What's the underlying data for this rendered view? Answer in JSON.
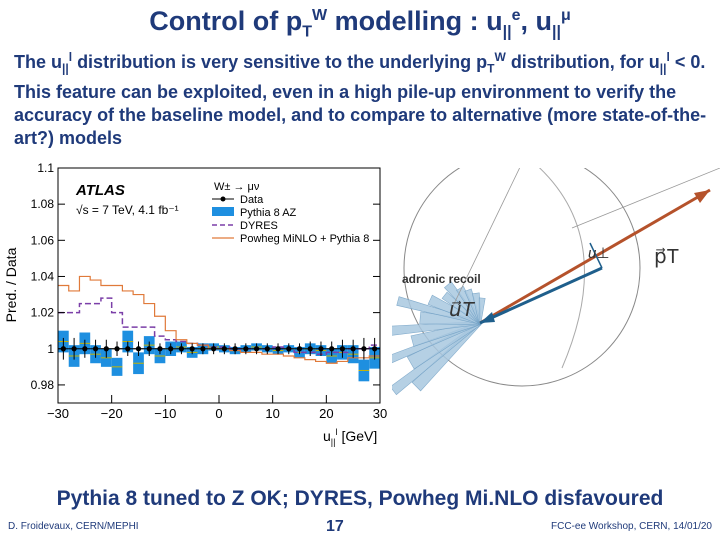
{
  "slide": {
    "title_a": "Control of p",
    "title_sub": "T",
    "title_sup": "W",
    "title_b": " modelling : u",
    "title_sub2": "||",
    "title_sup2": "e",
    "title_c": ", u",
    "title_sub3": "||",
    "title_sup3": "μ",
    "intro_1": "The u",
    "intro_sub1": "||",
    "intro_sup1": "l",
    "intro_2": " distribution is very sensitive to the underlying p",
    "intro_sub2": "T",
    "intro_sup2": "W",
    "intro_3": " distribution, for u",
    "intro_sub3": "||",
    "intro_sup3": "l",
    "intro_4": " < 0. This feature can be exploited, even in a high pile-up environment to verify the accuracy of the baseline model, and to compare to alternative (more state-of-the-art?) models",
    "conclusion": "Pythia 8 tuned to Z OK; DYRES, Powheg Mi.NLO disfavoured",
    "footer_left": "D. Froidevaux, CERN/MEPHI",
    "page_number": "17",
    "footer_right": "FCC-ee Workshop, CERN, 14/01/20"
  },
  "chart_data": {
    "type": "line",
    "ylabel": "Pred. / Data",
    "xlabel_main": "u",
    "xlabel_sub": "||",
    "xlabel_sup": "l",
    "xlabel_unit": "[GeV]",
    "xlim": [
      -30,
      30
    ],
    "ylim": [
      0.97,
      1.1
    ],
    "yticks": [
      0.98,
      1,
      1.02,
      1.04,
      1.06,
      1.08,
      1.1
    ],
    "ytick_labels": [
      "0.98",
      "1",
      "1.02",
      "1.04",
      "1.06",
      "1.08",
      "1.1"
    ],
    "xticks": [
      -30,
      -20,
      -10,
      0,
      10,
      20,
      30
    ],
    "xtick_labels": [
      "−30",
      "−20",
      "−10",
      "0",
      "10",
      "20",
      "30"
    ],
    "experiment": "ATLAS",
    "energy_label": "√s = 7 TeV, 4.1 fb⁻¹",
    "process_label": "W± → μν",
    "legend": [
      "Data",
      "Pythia 8 AZ",
      "DYRES",
      "Powheg MiNLO + Pythia 8"
    ],
    "bin_edges": [
      -30,
      -28,
      -26,
      -24,
      -22,
      -20,
      -18,
      -16,
      -14,
      -12,
      -10,
      -8,
      -6,
      -4,
      -2,
      0,
      2,
      4,
      6,
      8,
      10,
      12,
      14,
      16,
      18,
      20,
      22,
      24,
      26,
      28,
      30
    ],
    "data_points": [
      1,
      1,
      1,
      1,
      1,
      1,
      1,
      1,
      1,
      1,
      1,
      1,
      1,
      1,
      1,
      1,
      1,
      1,
      1,
      1,
      1,
      1,
      1,
      1,
      1,
      1,
      1,
      1,
      1,
      1
    ],
    "data_errors": [
      0.006,
      0.006,
      0.005,
      0.005,
      0.005,
      0.004,
      0.004,
      0.004,
      0.004,
      0.003,
      0.003,
      0.003,
      0.003,
      0.003,
      0.003,
      0.003,
      0.003,
      0.003,
      0.003,
      0.003,
      0.003,
      0.003,
      0.003,
      0.004,
      0.004,
      0.004,
      0.005,
      0.005,
      0.006,
      0.006
    ],
    "series": [
      {
        "name": "Pythia 8 AZ",
        "values": [
          1.004,
          0.996,
          1.003,
          0.997,
          0.995,
          0.99,
          1.004,
          0.992,
          1.002,
          0.996,
          1.0,
          1.001,
          0.998,
          1.0,
          1.001,
          1.0,
          0.999,
          1.0,
          1.001,
          1.0,
          0.999,
          1.0,
          0.998,
          1.0,
          0.999,
          0.996,
          0.998,
          0.997,
          0.988,
          0.995
        ],
        "band": [
          0.006,
          0.006,
          0.006,
          0.005,
          0.005,
          0.005,
          0.006,
          0.006,
          0.005,
          0.004,
          0.004,
          0.003,
          0.003,
          0.003,
          0.002,
          0.002,
          0.002,
          0.002,
          0.002,
          0.002,
          0.002,
          0.002,
          0.003,
          0.003,
          0.003,
          0.004,
          0.004,
          0.005,
          0.006,
          0.006
        ]
      },
      {
        "name": "DYRES",
        "values": [
          1.02,
          1.02,
          1.025,
          1.025,
          1.028,
          1.02,
          1.012,
          1.012,
          1.012,
          1.007,
          1.005,
          1.004,
          1.003,
          1.002,
          1.001,
          1.001,
          1.0,
          1.0,
          1.0,
          1.0,
          1.001,
          1.0,
          0.998,
          0.998,
          0.997,
          0.998,
          0.998,
          1.0,
          1.0,
          1.002
        ]
      },
      {
        "name": "Powheg MiNLO + Pythia 8",
        "values": [
          1.035,
          1.032,
          1.04,
          1.038,
          1.035,
          1.035,
          1.032,
          1.03,
          1.025,
          1.018,
          1.01,
          1.005,
          1.003,
          1.002,
          1.0,
          1.0,
          0.999,
          0.998,
          0.998,
          0.997,
          0.997,
          0.996,
          0.995,
          0.994,
          0.993,
          0.992,
          0.993,
          0.995,
          0.995,
          0.996
        ]
      }
    ],
    "colors": {
      "data": "#000000",
      "pythia_band": "#1e8fe0",
      "pythia_line": "#1e8fe0",
      "dyres": "#7b3fa8",
      "powheg": "#e07a3a",
      "unity": "#222222"
    }
  },
  "diagram": {
    "hadronic_recoil_label": "adronic recoil",
    "u_perp_label": "u⊥",
    "pT_label": "p⃗T",
    "uT_label": "u⃗T",
    "colors": {
      "pT_arrow": "#b5522b",
      "uT_arrow": "#1f5f8c",
      "hadrons": "#a9c8e0",
      "circle": "#888888"
    }
  }
}
